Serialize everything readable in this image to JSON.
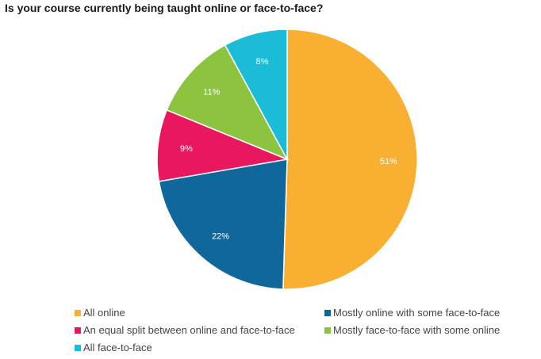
{
  "chart_data": {
    "type": "pie",
    "title": "Is your course currently being taught online or face-to-face?",
    "slices": [
      {
        "label": "All online",
        "value": 51,
        "display": "51%",
        "color": "#F9B032"
      },
      {
        "label": "Mostly online with some face-to-face",
        "value": 22,
        "display": "22%",
        "color": "#10679B"
      },
      {
        "label": "An equal split between online and face-to-face",
        "value": 9,
        "display": "9%",
        "color": "#E9175F"
      },
      {
        "label": "Mostly face-to-face with some online",
        "value": 11,
        "display": "11%",
        "color": "#8CC43F"
      },
      {
        "label": "All face-to-face",
        "value": 8,
        "display": "8%",
        "color": "#1BBCD8"
      }
    ],
    "legend_placement": "bottom"
  }
}
